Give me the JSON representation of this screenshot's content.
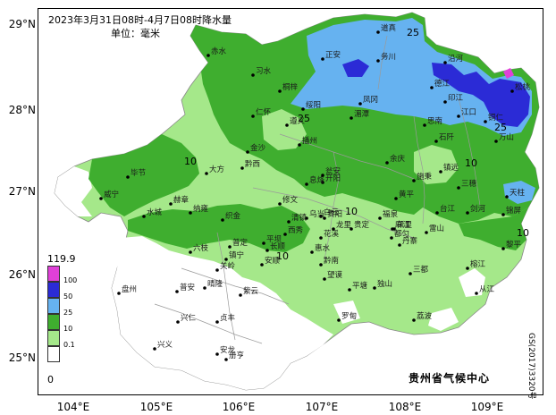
{
  "map": {
    "title": "2023年3月31日08时-4月7日08时降水量",
    "unit_label": "单位：毫米",
    "agency": "贵州省气候中心",
    "code": "GS(2017)3320号",
    "lat_labels": [
      "29°N",
      "28°N",
      "27°N",
      "26°N",
      "25°N"
    ],
    "lon_labels": [
      "104°E",
      "105°E",
      "106°E",
      "107°E",
      "108°E",
      "109°E"
    ],
    "contour_labels": [
      "25",
      "25",
      "25",
      "10",
      "10",
      "10",
      "10",
      "10"
    ],
    "legend": {
      "max": "119.9",
      "min": "0",
      "levels": [
        {
          "label": "100",
          "color": "#e040d8"
        },
        {
          "label": "50",
          "color": "#2b2bd6"
        },
        {
          "label": "25",
          "color": "#66b2f0"
        },
        {
          "label": "10",
          "color": "#3fae2f"
        },
        {
          "label": "0.1",
          "color": "#a5e88a"
        },
        {
          "label": "",
          "color": "#ffffff"
        }
      ]
    },
    "colors": {
      "light_green": "#a5e88a",
      "green": "#3fae2f",
      "light_blue": "#66b2f0",
      "blue": "#2b2bd6",
      "magenta": "#e040d8",
      "border_gray": "#9a9a9a"
    },
    "cities": [
      "道真",
      "赤水",
      "习水",
      "正安",
      "务川",
      "沿河",
      "桐梓",
      "德江",
      "印江",
      "江口",
      "凤冈",
      "湄潭",
      "思南",
      "余庆",
      "石阡",
      "铜仁",
      "松桃",
      "仁怀",
      "遵义",
      "绥阳",
      "金沙",
      "播州",
      "万山",
      "黔西",
      "大方",
      "毕节",
      "织金",
      "修文",
      "开阳",
      "瓮安",
      "施秉",
      "镇远",
      "三穗",
      "天柱",
      "锦屏",
      "剑河",
      "台江",
      "黄平",
      "凯里",
      "雷山",
      "丹寨",
      "榕江",
      "黎平",
      "从江",
      "三都",
      "都匀",
      "麻江",
      "福泉",
      "龙里",
      "贵定",
      "平塘",
      "独山",
      "荔波",
      "罗甸",
      "望谟",
      "册亨",
      "安龙",
      "兴义",
      "兴仁",
      "贞丰",
      "紫云",
      "长顺",
      "惠水",
      "晴隆",
      "普安",
      "盘州",
      "六枝",
      "水城",
      "纳雍",
      "赫章",
      "威宁",
      "清镇",
      "平坝",
      "花溪",
      "安顺",
      "镇宁",
      "关岭",
      "普定",
      "西秀",
      "白云",
      "乌当",
      "息烽",
      "贵阳",
      "黔南"
    ]
  }
}
